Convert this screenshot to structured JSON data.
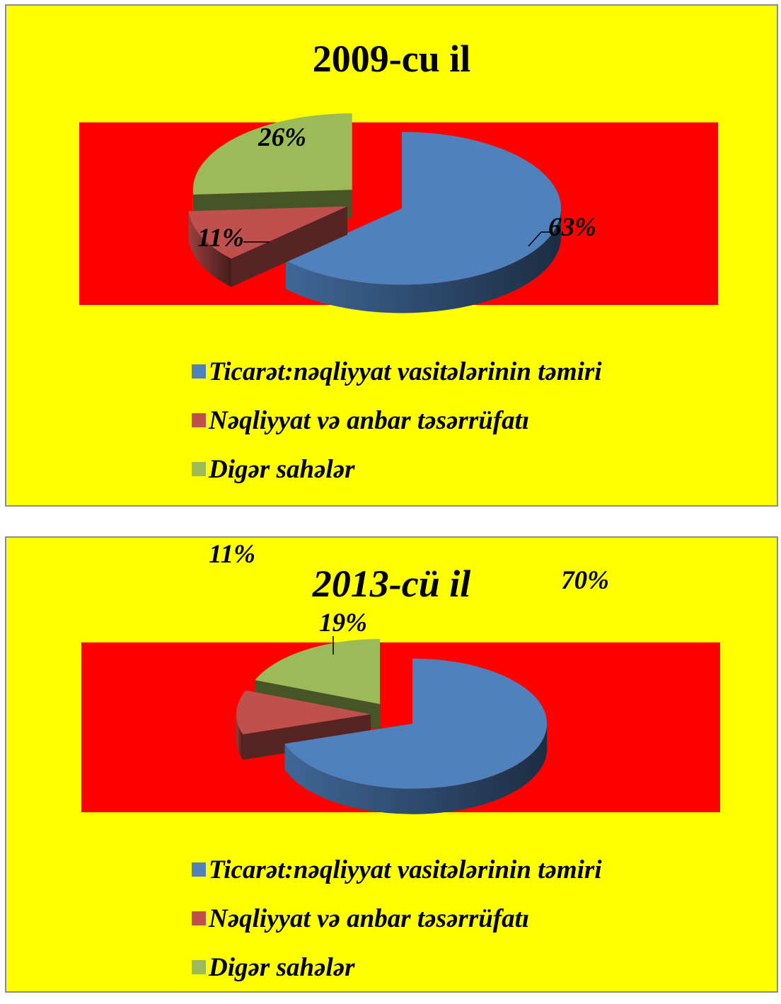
{
  "chart_data": [
    {
      "type": "pie",
      "title": "2009-cu il",
      "categories": [
        "Ticarət:nəqliyyat vasitələrinin təmiri",
        "Nəqliyyat və anbar təsərrüfatı",
        "Digər sahələr"
      ],
      "values": [
        63,
        11,
        26
      ],
      "data_labels": [
        "63%",
        "11%",
        "26%"
      ],
      "colors": [
        "#4f81bd",
        "#c0504d",
        "#9bbb59"
      ],
      "legend_position": "bottom",
      "exploded": true,
      "style": "3d"
    },
    {
      "type": "pie",
      "title": "2013-cü il",
      "categories": [
        "Ticarət:nəqliyyat vasitələrinin təmiri",
        "Nəqliyyat və anbar təsərrüfatı",
        "Digər sahələr"
      ],
      "values": [
        70,
        11,
        19
      ],
      "data_labels": [
        "70%",
        "11%",
        "19%"
      ],
      "colors": [
        "#4f81bd",
        "#c0504d",
        "#9bbb59"
      ],
      "legend_position": "bottom",
      "exploded": true,
      "style": "3d"
    }
  ]
}
